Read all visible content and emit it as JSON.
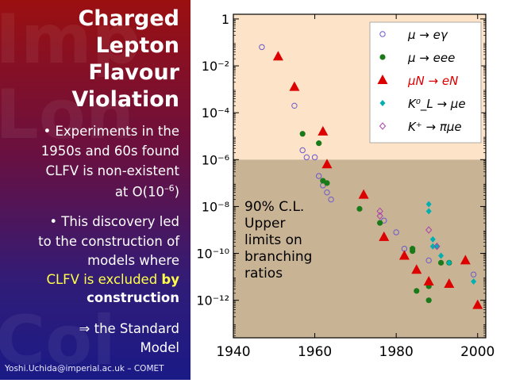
{
  "sidebar": {
    "title_lines": [
      "Charged",
      "Lepton",
      "Flavour",
      "Violation"
    ],
    "p1": {
      "line1": "• Experiments in the",
      "line2": "1950s and 60s found",
      "line3": "CLFV is non-existent",
      "line4": "at O(10",
      "line4_sup": "–6",
      "line4_end": ")"
    },
    "p2": {
      "line1": "• This discovery led",
      "line2": "to the construction of",
      "line3": "models where",
      "line4a": "CLFV is excluded ",
      "line4b": "by",
      "line5": "construction"
    },
    "p3": {
      "line1": "⇒ the Standard",
      "line2": "Model"
    },
    "footer": "Yoshi.Uchida@imperial.ac.uk – COMET",
    "bg_words": [
      "Imp",
      "Lon",
      "Col"
    ]
  },
  "chart_data": {
    "type": "scatter",
    "x_axis": {
      "lim": [
        1940,
        2002
      ],
      "ticks": [
        "1940",
        "1960",
        "1980",
        "2000"
      ],
      "tick_values": [
        1940,
        1960,
        1980,
        2000
      ]
    },
    "y_axis": {
      "scale": "log",
      "lim_exp": [
        -13.6,
        0.2
      ],
      "ticks": [
        {
          "exp": 0,
          "label": "1"
        },
        {
          "exp": -2,
          "label": "10⁻²"
        },
        {
          "exp": -4,
          "label": "10⁻⁴"
        },
        {
          "exp": -6,
          "label": "10⁻⁶"
        },
        {
          "exp": -8,
          "label": "10⁻⁸"
        },
        {
          "exp": -10,
          "label": "10⁻¹⁰"
        },
        {
          "exp": -12,
          "label": "10⁻¹²"
        }
      ]
    },
    "region_split_exp": -6,
    "region_colors": {
      "upper": "#fde3c8",
      "lower": "#c9b395"
    },
    "annotation": [
      "90% C.L.",
      "Upper",
      "limits on",
      "branching",
      "ratios"
    ],
    "legend_position": "top-right",
    "series": [
      {
        "name": "μ → eγ",
        "marker": "circle-open",
        "color": "#6a5acd",
        "points": [
          [
            1947,
            -1.2
          ],
          [
            1955,
            -3.7
          ],
          [
            1957,
            -5.6
          ],
          [
            1958,
            -5.9
          ],
          [
            1960,
            -5.9
          ],
          [
            1961,
            -6.7
          ],
          [
            1962,
            -7.1
          ],
          [
            1963,
            -7.4
          ],
          [
            1964,
            -7.7
          ],
          [
            1977,
            -8.6
          ],
          [
            1980,
            -9.1
          ],
          [
            1982,
            -9.8
          ],
          [
            1988,
            -10.3
          ],
          [
            1999,
            -10.9
          ]
        ]
      },
      {
        "name": "μ → eee",
        "marker": "circle-filled",
        "color": "#1a7a1a",
        "points": [
          [
            1957,
            -4.9
          ],
          [
            1961,
            -5.3
          ],
          [
            1962,
            -6.9
          ],
          [
            1963,
            -7.0
          ],
          [
            1971,
            -8.1
          ],
          [
            1976,
            -8.7
          ],
          [
            1984,
            -9.8
          ],
          [
            1984,
            -9.9
          ],
          [
            1985,
            -11.6
          ],
          [
            1988,
            -11.4
          ],
          [
            1988,
            -12.0
          ],
          [
            1991,
            -10.4
          ],
          [
            1993,
            -10.4
          ]
        ]
      },
      {
        "name": "μN → eN",
        "marker": "triangle",
        "color": "#dd0000",
        "points": [
          [
            1951,
            -1.6
          ],
          [
            1955,
            -2.9
          ],
          [
            1962,
            -4.8
          ],
          [
            1963,
            -6.2
          ],
          [
            1972,
            -7.5
          ],
          [
            1977,
            -9.3
          ],
          [
            1982,
            -10.1
          ],
          [
            1985,
            -10.7
          ],
          [
            1988,
            -11.2
          ],
          [
            1993,
            -11.3
          ],
          [
            1997,
            -10.3
          ],
          [
            2000,
            -12.2
          ]
        ]
      },
      {
        "name": "K⁰_L → μe",
        "marker": "diamond-filled",
        "color": "#00b0b0",
        "points": [
          [
            1988,
            -7.9
          ],
          [
            1988,
            -8.2
          ],
          [
            1989,
            -9.4
          ],
          [
            1989,
            -9.7
          ],
          [
            1990,
            -9.7
          ],
          [
            1991,
            -10.1
          ],
          [
            1993,
            -10.4
          ],
          [
            1999,
            -11.2
          ]
        ]
      },
      {
        "name": "K⁺ → πμe",
        "marker": "diamond-open",
        "color": "#aa44aa",
        "points": [
          [
            1976,
            -8.2
          ],
          [
            1976,
            -8.4
          ],
          [
            1988,
            -9.0
          ],
          [
            1990,
            -9.7
          ]
        ]
      }
    ]
  }
}
